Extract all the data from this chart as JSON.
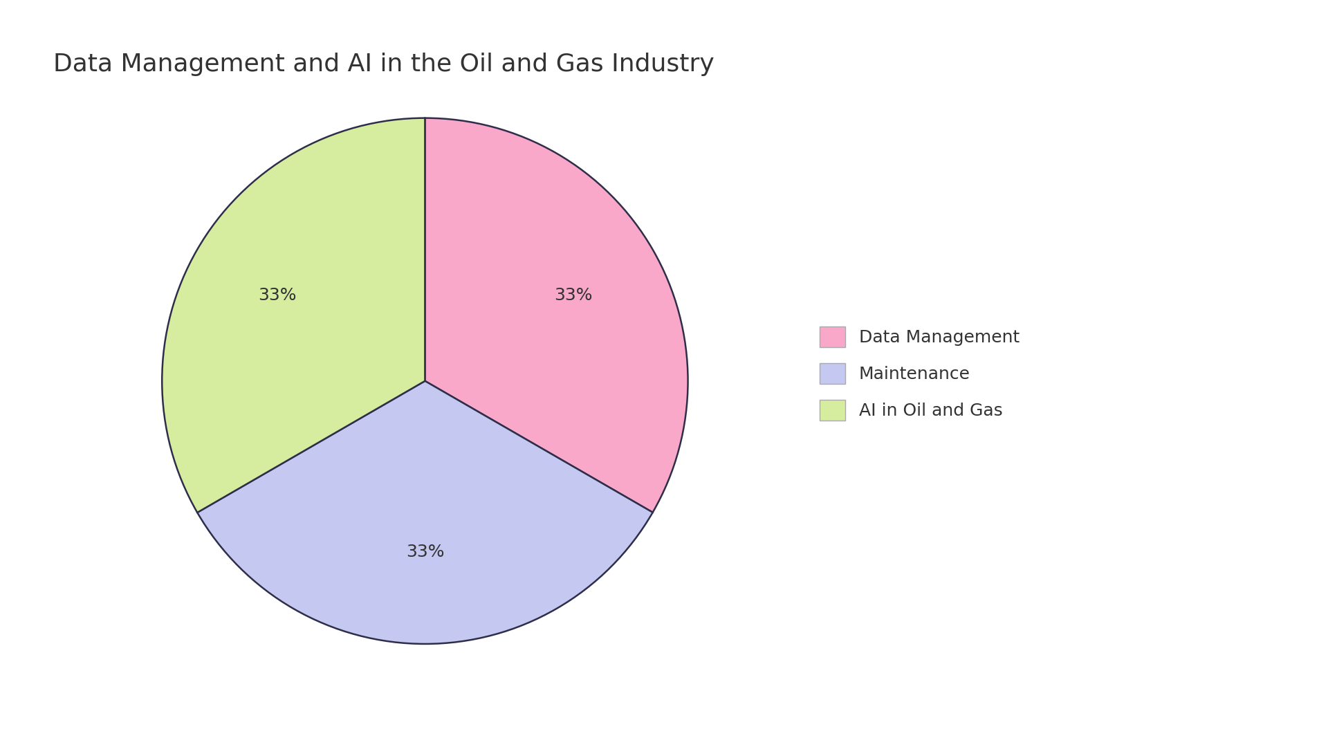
{
  "title": "Data Management and AI in the Oil and Gas Industry",
  "labels": [
    "Data Management",
    "Maintenance",
    "AI in Oil and Gas"
  ],
  "values": [
    33.33,
    33.33,
    33.34
  ],
  "colors": [
    "#F9A8C9",
    "#C5C8F0",
    "#D6EDA0"
  ],
  "edge_color": "#2e2e4a",
  "edge_linewidth": 1.8,
  "title_fontsize": 26,
  "pct_fontsize": 18,
  "background_color": "#ffffff",
  "legend_fontsize": 18,
  "startangle": 90,
  "pct_distance": 0.65
}
